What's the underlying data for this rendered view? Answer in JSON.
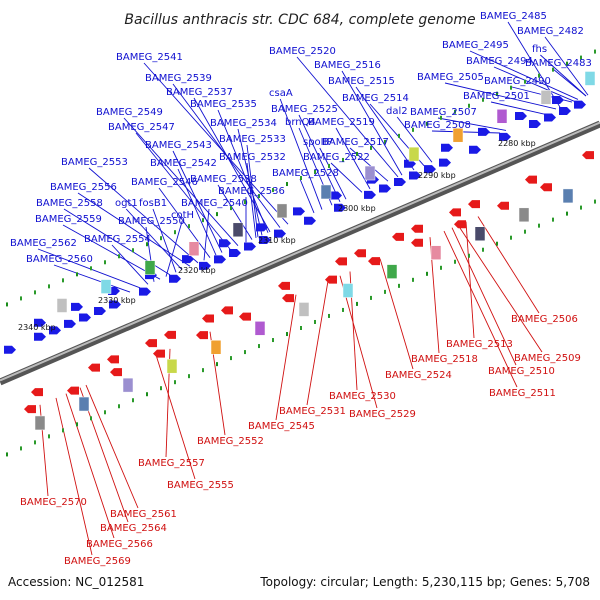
{
  "title": "Bacillus anthracis str. CDC 684, complete genome",
  "accession": "Accession: NC_012581",
  "summary": "Topology: circular; Length: 5,230,115 bp; Genes: 5,708",
  "colors": {
    "forward": "#1a1ae6",
    "reverse": "#e61a1a",
    "backbone": "#7a7a7a",
    "top_label": "#1010d0",
    "bottom_label": "#d01010",
    "tick_green": "#1a8c1a"
  },
  "kbp_ticks": [
    "2280 kbp",
    "2290 kbp",
    "2300 kbp",
    "2310 kbp",
    "2320 kbp",
    "2330 kbp",
    "2340 kbp"
  ],
  "top_labels": [
    "BAMEG_2485",
    "BAMEG_2482",
    "fhs",
    "BAMEG_2483",
    "BAMEG_2495",
    "BAMEG_2494",
    "BAMEG_2490",
    "BAMEG_2505",
    "BAMEG_2501",
    "BAMEG_2507",
    "BAMEG_2508",
    "dal2",
    "BAMEG_2514",
    "BAMEG_2515",
    "BAMEG_2516",
    "BAMEG_2520",
    "BAMEG_2517",
    "BAMEG_2519",
    "BAMEG_2522",
    "spoIIP",
    "BAMEG_2525",
    "brnQ4",
    "csaA",
    "BAMEG_2528",
    "BAMEG_2541",
    "BAMEG_2539",
    "BAMEG_2537",
    "BAMEG_2535",
    "BAMEG_2534",
    "BAMEG_2533",
    "BAMEG_2532",
    "BAMEG_2538",
    "BAMEG_2536",
    "BAMEG_2549",
    "BAMEG_2547",
    "BAMEG_2543",
    "BAMEG_2542",
    "BAMEG_2546",
    "BAMEG_2540",
    "BAMEG_2553",
    "BAMEG_2556",
    "ogt1",
    "fosB1",
    "BAMEG_2558",
    "cotH",
    "BAMEG_2559",
    "BAMEG_2550",
    "BAMEG_2554",
    "BAMEG_2562",
    "BAMEG_2560"
  ],
  "bottom_labels": [
    "BAMEG_2506",
    "BAMEG_2513",
    "BAMEG_2509",
    "BAMEG_2510",
    "BAMEG_2511",
    "BAMEG_2518",
    "BAMEG_2524",
    "BAMEG_2530",
    "BAMEG_2531",
    "BAMEG_2529",
    "BAMEG_2545",
    "BAMEG_2552",
    "BAMEG_2557",
    "BAMEG_2555",
    "BAMEG_2570",
    "BAMEG_2561",
    "BAMEG_2564",
    "BAMEG_2566",
    "BAMEG_2569"
  ]
}
